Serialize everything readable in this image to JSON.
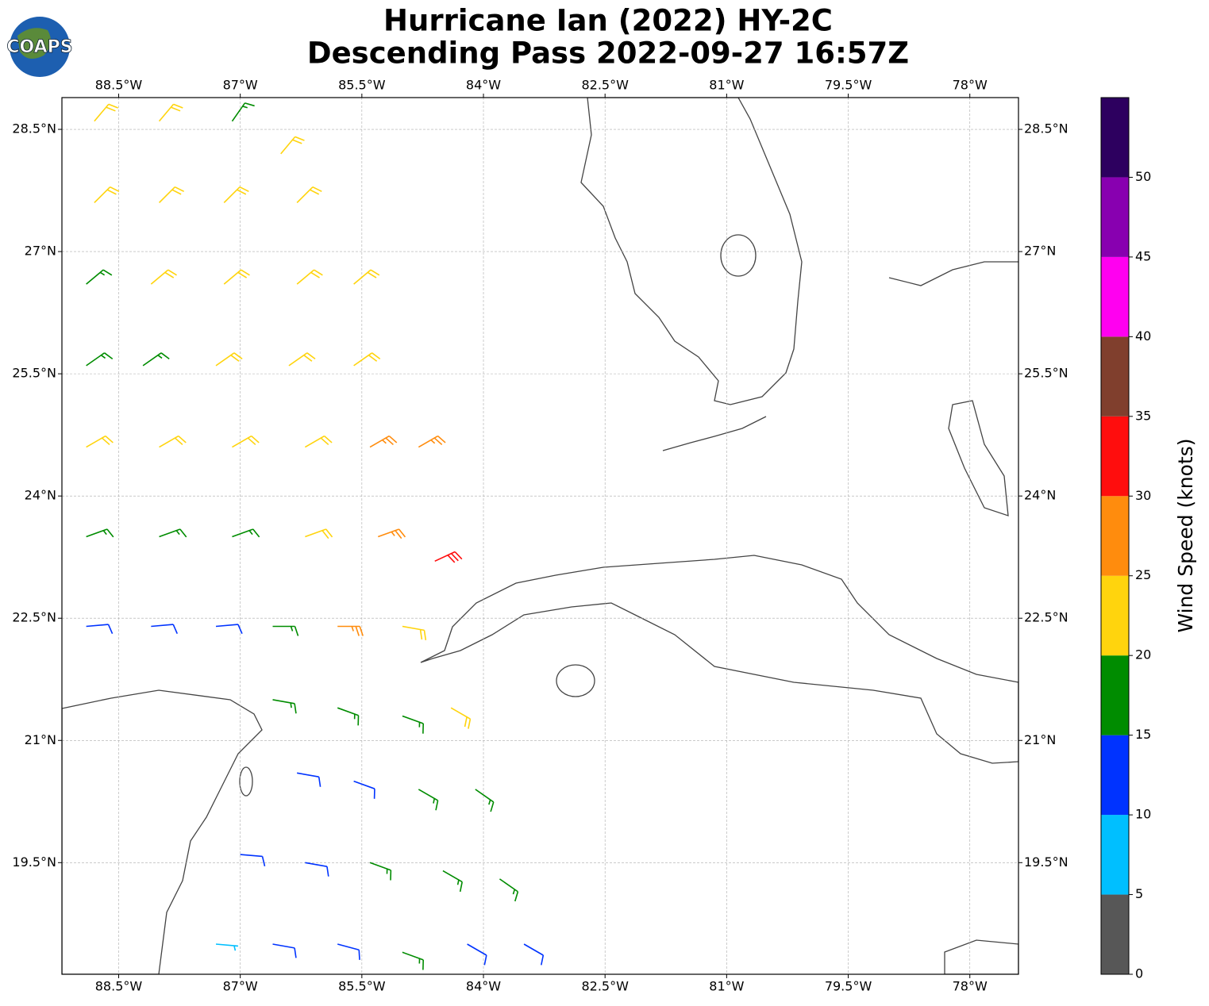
{
  "logo_text": "COAPS",
  "chart_data": {
    "type": "barbs",
    "title": "Hurricane Ian (2022) HY-2C",
    "subtitle": "Descending Pass 2022-09-27 16:57Z",
    "xlim": [
      -89.2,
      -77.4
    ],
    "ylim": [
      18.13,
      28.89
    ],
    "grid": true,
    "xticks": [
      {
        "value": -88.5,
        "label": "88.5°W"
      },
      {
        "value": -87,
        "label": "87°W"
      },
      {
        "value": -85.5,
        "label": "85.5°W"
      },
      {
        "value": -84,
        "label": "84°W"
      },
      {
        "value": -82.5,
        "label": "82.5°W"
      },
      {
        "value": -81,
        "label": "81°W"
      },
      {
        "value": -79.5,
        "label": "79.5°W"
      },
      {
        "value": -78,
        "label": "78°W"
      }
    ],
    "yticks": [
      {
        "value": 19.5,
        "label": "19.5°N"
      },
      {
        "value": 21,
        "label": "21°N"
      },
      {
        "value": 22.5,
        "label": "22.5°N"
      },
      {
        "value": 24,
        "label": "24°N"
      },
      {
        "value": 25.5,
        "label": "25.5°N"
      },
      {
        "value": 27,
        "label": "27°N"
      },
      {
        "value": 28.5,
        "label": "28.5°N"
      }
    ],
    "colorbar": {
      "label": "Wind Speed (knots)",
      "clim": [
        0,
        55
      ],
      "ticks": [
        0,
        5,
        10,
        15,
        20,
        25,
        30,
        35,
        40,
        45,
        50
      ],
      "bounds": [
        0,
        5,
        10,
        15,
        20,
        25,
        30,
        35,
        40,
        45,
        50,
        55
      ],
      "colors": [
        "#575757",
        "#00bfff",
        "#0033ff",
        "#008c00",
        "#ffd40d",
        "#ff8c0d",
        "#ff0d0d",
        "#803f2d",
        "#ff00f0",
        "#8800b0",
        "#2d005f"
      ]
    },
    "barbs": {
      "lon": [
        -88.8,
        -88.0,
        -87.1,
        -86.5,
        -88.8,
        -88.0,
        -87.2,
        -86.3,
        -88.9,
        -88.1,
        -87.2,
        -86.3,
        -85.6,
        -88.9,
        -88.2,
        -87.3,
        -86.4,
        -85.6,
        -88.9,
        -88.0,
        -87.1,
        -86.2,
        -85.4,
        -84.8,
        -88.9,
        -88.0,
        -87.1,
        -86.2,
        -85.3,
        -84.6,
        -88.9,
        -88.1,
        -87.3,
        -86.6,
        -85.8,
        -85.0,
        -86.6,
        -85.8,
        -85.0,
        -84.4,
        -86.3,
        -85.6,
        -84.8,
        -84.1,
        -87.0,
        -86.2,
        -85.4,
        -84.5,
        -83.8,
        -87.3,
        -86.6,
        -85.8,
        -85.0,
        -84.2,
        -83.5
      ],
      "lat": [
        28.6,
        28.6,
        28.6,
        28.2,
        27.6,
        27.6,
        27.6,
        27.6,
        26.6,
        26.6,
        26.6,
        26.6,
        26.6,
        25.6,
        25.6,
        25.6,
        25.6,
        25.6,
        24.6,
        24.6,
        24.6,
        24.6,
        24.6,
        24.6,
        23.5,
        23.5,
        23.5,
        23.5,
        23.5,
        23.2,
        22.4,
        22.4,
        22.4,
        22.4,
        22.4,
        22.4,
        21.5,
        21.4,
        21.3,
        21.4,
        20.6,
        20.5,
        20.4,
        20.4,
        19.6,
        19.5,
        19.5,
        19.4,
        19.3,
        18.5,
        18.5,
        18.5,
        18.4,
        18.5,
        18.5
      ],
      "speed": [
        22,
        22,
        18,
        22,
        22,
        22,
        22,
        22,
        17,
        22,
        22,
        22,
        22,
        17,
        17,
        22,
        22,
        22,
        22,
        22,
        22,
        22,
        27,
        27,
        17,
        17,
        17,
        22,
        27,
        32,
        12,
        12,
        12,
        17,
        27,
        22,
        17,
        17,
        17,
        22,
        12,
        12,
        17,
        17,
        12,
        12,
        17,
        17,
        17,
        7,
        12,
        12,
        17,
        12,
        12
      ],
      "direction": [
        40,
        40,
        35,
        40,
        45,
        45,
        45,
        45,
        50,
        50,
        50,
        50,
        50,
        55,
        55,
        55,
        55,
        55,
        60,
        60,
        60,
        60,
        60,
        60,
        70,
        70,
        70,
        70,
        70,
        65,
        85,
        85,
        85,
        90,
        90,
        100,
        100,
        110,
        110,
        120,
        100,
        110,
        120,
        125,
        95,
        100,
        110,
        120,
        125,
        95,
        100,
        105,
        110,
        120,
        120
      ]
    }
  }
}
